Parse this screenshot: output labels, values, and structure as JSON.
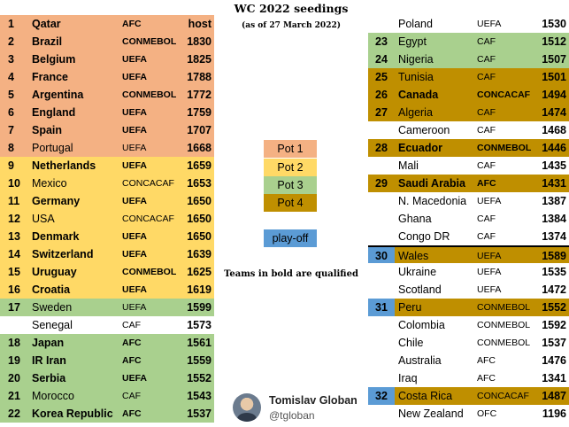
{
  "title": "WC 2022 seedings",
  "subtitle": "(as of 27 March 2022)",
  "legend": {
    "pot1": "Pot 1",
    "pot2": "Pot 2",
    "pot3": "Pot 3",
    "pot4": "Pot 4",
    "playoff": "play-off"
  },
  "colors": {
    "pot1": "#f4b183",
    "pot2": "#ffd966",
    "pot3": "#a9d08e",
    "pot4": "#bf8f00",
    "playoff": "#5b9bd5"
  },
  "note": "Teams in bold are qualified",
  "author": {
    "name": "Tomislav Globan",
    "handle": "@tgloban",
    "avatar_icon": "avatar-photo"
  },
  "left_table": [
    {
      "rank": "1",
      "team": "Qatar",
      "conf": "AFC",
      "points": "host",
      "bold": true,
      "pot": "pot1"
    },
    {
      "rank": "2",
      "team": "Brazil",
      "conf": "CONMEBOL",
      "points": "1830",
      "bold": true,
      "pot": "pot1"
    },
    {
      "rank": "3",
      "team": "Belgium",
      "conf": "UEFA",
      "points": "1825",
      "bold": true,
      "pot": "pot1"
    },
    {
      "rank": "4",
      "team": "France",
      "conf": "UEFA",
      "points": "1788",
      "bold": true,
      "pot": "pot1"
    },
    {
      "rank": "5",
      "team": "Argentina",
      "conf": "CONMEBOL",
      "points": "1772",
      "bold": true,
      "pot": "pot1"
    },
    {
      "rank": "6",
      "team": "England",
      "conf": "UEFA",
      "points": "1759",
      "bold": true,
      "pot": "pot1"
    },
    {
      "rank": "7",
      "team": "Spain",
      "conf": "UEFA",
      "points": "1707",
      "bold": true,
      "pot": "pot1"
    },
    {
      "rank": "8",
      "team": "Portugal",
      "conf": "UEFA",
      "points": "1668",
      "bold": false,
      "pot": "pot1"
    },
    {
      "rank": "9",
      "team": "Netherlands",
      "conf": "UEFA",
      "points": "1659",
      "bold": true,
      "pot": "pot2"
    },
    {
      "rank": "10",
      "team": "Mexico",
      "conf": "CONCACAF",
      "points": "1653",
      "bold": false,
      "pot": "pot2"
    },
    {
      "rank": "11",
      "team": "Germany",
      "conf": "UEFA",
      "points": "1650",
      "bold": true,
      "pot": "pot2"
    },
    {
      "rank": "12",
      "team": "USA",
      "conf": "CONCACAF",
      "points": "1650",
      "bold": false,
      "pot": "pot2"
    },
    {
      "rank": "13",
      "team": "Denmark",
      "conf": "UEFA",
      "points": "1650",
      "bold": true,
      "pot": "pot2"
    },
    {
      "rank": "14",
      "team": "Switzerland",
      "conf": "UEFA",
      "points": "1639",
      "bold": true,
      "pot": "pot2"
    },
    {
      "rank": "15",
      "team": "Uruguay",
      "conf": "CONMEBOL",
      "points": "1625",
      "bold": true,
      "pot": "pot2"
    },
    {
      "rank": "16",
      "team": "Croatia",
      "conf": "UEFA",
      "points": "1619",
      "bold": true,
      "pot": "pot2"
    },
    {
      "rank": "17",
      "team": "Sweden",
      "conf": "UEFA",
      "points": "1599",
      "bold": false,
      "pot": "pot3"
    },
    {
      "rank": "",
      "team": "Senegal",
      "conf": "CAF",
      "points": "1573",
      "bold": false,
      "pot": "none"
    },
    {
      "rank": "18",
      "team": "Japan",
      "conf": "AFC",
      "points": "1561",
      "bold": true,
      "pot": "pot3"
    },
    {
      "rank": "19",
      "team": "IR Iran",
      "conf": "AFC",
      "points": "1559",
      "bold": true,
      "pot": "pot3"
    },
    {
      "rank": "20",
      "team": "Serbia",
      "conf": "UEFA",
      "points": "1552",
      "bold": true,
      "pot": "pot3"
    },
    {
      "rank": "21",
      "team": "Morocco",
      "conf": "CAF",
      "points": "1543",
      "bold": false,
      "pot": "pot3"
    },
    {
      "rank": "22",
      "team": "Korea Republic",
      "conf": "AFC",
      "points": "1537",
      "bold": true,
      "pot": "pot3"
    }
  ],
  "right_table": [
    {
      "rank": "",
      "team": "Poland",
      "conf": "UEFA",
      "points": "1530",
      "bold": false,
      "pot": "none",
      "rank_color": "none"
    },
    {
      "rank": "23",
      "team": "Egypt",
      "conf": "CAF",
      "points": "1512",
      "bold": false,
      "pot": "pot3",
      "rank_color": "pot3"
    },
    {
      "rank": "24",
      "team": "Nigeria",
      "conf": "CAF",
      "points": "1507",
      "bold": false,
      "pot": "pot3",
      "rank_color": "pot3"
    },
    {
      "rank": "25",
      "team": "Tunisia",
      "conf": "CAF",
      "points": "1501",
      "bold": false,
      "pot": "pot4",
      "rank_color": "pot4"
    },
    {
      "rank": "26",
      "team": "Canada",
      "conf": "CONCACAF",
      "points": "1494",
      "bold": true,
      "pot": "pot4",
      "rank_color": "pot4"
    },
    {
      "rank": "27",
      "team": "Algeria",
      "conf": "CAF",
      "points": "1474",
      "bold": false,
      "pot": "pot4",
      "rank_color": "pot4"
    },
    {
      "rank": "",
      "team": "Cameroon",
      "conf": "CAF",
      "points": "1468",
      "bold": false,
      "pot": "none",
      "rank_color": "none"
    },
    {
      "rank": "28",
      "team": "Ecuador",
      "conf": "CONMEBOL",
      "points": "1446",
      "bold": true,
      "pot": "pot4",
      "rank_color": "pot4"
    },
    {
      "rank": "",
      "team": "Mali",
      "conf": "CAF",
      "points": "1435",
      "bold": false,
      "pot": "none",
      "rank_color": "none"
    },
    {
      "rank": "29",
      "team": "Saudi Arabia",
      "conf": "AFC",
      "points": "1431",
      "bold": true,
      "pot": "pot4",
      "rank_color": "pot4"
    },
    {
      "rank": "",
      "team": "N. Macedonia",
      "conf": "UEFA",
      "points": "1387",
      "bold": false,
      "pot": "none",
      "rank_color": "none"
    },
    {
      "rank": "",
      "team": "Ghana",
      "conf": "CAF",
      "points": "1384",
      "bold": false,
      "pot": "none",
      "rank_color": "none"
    },
    {
      "rank": "",
      "team": "Congo DR",
      "conf": "CAF",
      "points": "1374",
      "bold": false,
      "pot": "none",
      "rank_color": "none"
    },
    {
      "rank": "30",
      "team": "Wales",
      "conf": "UEFA",
      "points": "1589",
      "bold": false,
      "pot": "pot4",
      "rank_color": "playoff",
      "separator": true
    },
    {
      "rank": "",
      "team": "Ukraine",
      "conf": "UEFA",
      "points": "1535",
      "bold": false,
      "pot": "none",
      "rank_color": "none"
    },
    {
      "rank": "",
      "team": "Scotland",
      "conf": "UEFA",
      "points": "1472",
      "bold": false,
      "pot": "none",
      "rank_color": "none"
    },
    {
      "rank": "31",
      "team": "Peru",
      "conf": "CONMEBOL",
      "points": "1552",
      "bold": false,
      "pot": "pot4",
      "rank_color": "playoff"
    },
    {
      "rank": "",
      "team": "Colombia",
      "conf": "CONMEBOL",
      "points": "1592",
      "bold": false,
      "pot": "none",
      "rank_color": "none"
    },
    {
      "rank": "",
      "team": "Chile",
      "conf": "CONMEBOL",
      "points": "1537",
      "bold": false,
      "pot": "none",
      "rank_color": "none"
    },
    {
      "rank": "",
      "team": "Australia",
      "conf": "AFC",
      "points": "1476",
      "bold": false,
      "pot": "none",
      "rank_color": "none"
    },
    {
      "rank": "",
      "team": "Iraq",
      "conf": "AFC",
      "points": "1341",
      "bold": false,
      "pot": "none",
      "rank_color": "none"
    },
    {
      "rank": "32",
      "team": "Costa Rica",
      "conf": "CONCACAF",
      "points": "1487",
      "bold": false,
      "pot": "pot4",
      "rank_color": "playoff"
    },
    {
      "rank": "",
      "team": "New Zealand",
      "conf": "OFC",
      "points": "1196",
      "bold": false,
      "pot": "none",
      "rank_color": "none"
    }
  ]
}
